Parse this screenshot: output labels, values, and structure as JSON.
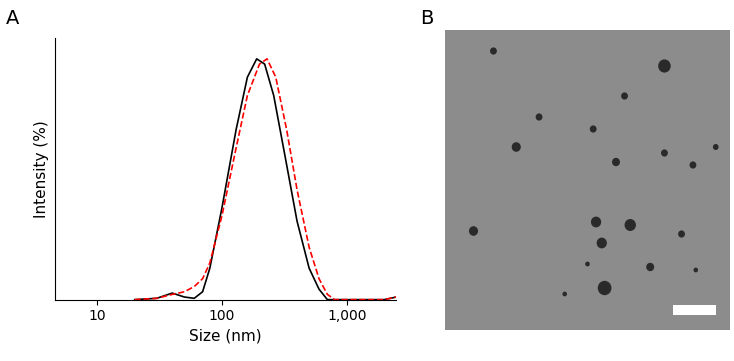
{
  "chart_data": [
    {
      "type": "line",
      "title": "A",
      "x_label": "Size (nm)",
      "y_label": "Intensity (%)",
      "log": "x",
      "tick_labels": "x",
      "xlim": [
        4.6,
        2500
      ],
      "ylim": [
        0,
        100
      ],
      "xticks": [
        10,
        100,
        {
          "value": 1000,
          "label": "1,000"
        }
      ],
      "yticks": [],
      "series": [
        {
          "color": "#000000",
          "line_style": "solid",
          "x": [
            20,
            30,
            40,
            50,
            60,
            70,
            80,
            100,
            130,
            160,
            190,
            220,
            260,
            320,
            400,
            500,
            600,
            700,
            1000,
            2000,
            2500
          ],
          "values": [
            0,
            0.5,
            2.5,
            1,
            0.5,
            3,
            12,
            35,
            65,
            85,
            92,
            90,
            78,
            55,
            30,
            12,
            4,
            0,
            0,
            0,
            1
          ]
        },
        {
          "color": "#ff0000",
          "line_style": "dashed",
          "x": [
            20,
            30,
            40,
            50,
            60,
            70,
            80,
            100,
            130,
            160,
            200,
            230,
            270,
            330,
            400,
            500,
            600,
            700,
            800,
            2000,
            2500
          ],
          "values": [
            0,
            0.5,
            2,
            3,
            5,
            8,
            14,
            32,
            58,
            78,
            90,
            92,
            85,
            65,
            42,
            20,
            8,
            2,
            0,
            0,
            1
          ]
        }
      ]
    },
    {
      "type": "image",
      "title": "B"
    }
  ]
}
